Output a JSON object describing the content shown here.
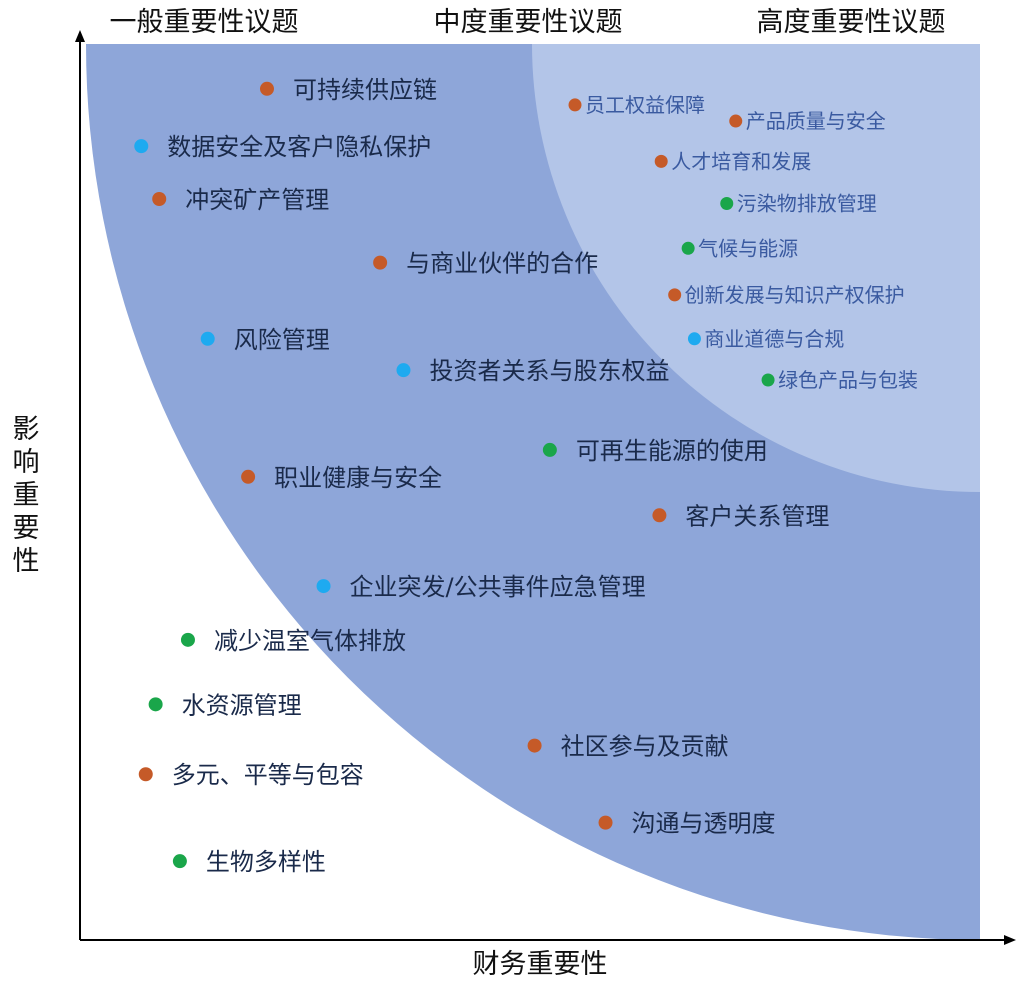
{
  "chart_data": {
    "type": "scatter",
    "title": "",
    "xlabel": "财务重要性",
    "ylabel": "影响重要性",
    "xlim": [
      0,
      100
    ],
    "ylim": [
      0,
      100
    ],
    "zones": [
      {
        "label": "一般重要性议题",
        "color": "#ffffff"
      },
      {
        "label": "中度重要性议题",
        "color": "#8ea6d9"
      },
      {
        "label": "高度重要性议题",
        "color": "#b3c5e8"
      }
    ],
    "category_colors": {
      "orange": "#c55a28",
      "green": "#1aa64a",
      "blue": "#1eaaf0"
    },
    "points": [
      {
        "label": "可持续供应链",
        "x": 20.6,
        "y": 95.0,
        "color": "orange"
      },
      {
        "label": "数据安全及客户隐私保护",
        "x": 6.6,
        "y": 88.6,
        "color": "blue"
      },
      {
        "label": "冲突矿产管理",
        "x": 8.6,
        "y": 82.7,
        "color": "orange"
      },
      {
        "label": "与商业伙伴的合作",
        "x": 33.2,
        "y": 75.6,
        "color": "orange"
      },
      {
        "label": "风险管理",
        "x": 14.0,
        "y": 67.1,
        "color": "blue"
      },
      {
        "label": "投资者关系与股东权益",
        "x": 35.8,
        "y": 63.6,
        "color": "blue"
      },
      {
        "label": "可再生能源的使用",
        "x": 52.1,
        "y": 54.7,
        "color": "green"
      },
      {
        "label": "职业健康与安全",
        "x": 18.5,
        "y": 51.7,
        "color": "orange"
      },
      {
        "label": "客户关系管理",
        "x": 64.3,
        "y": 47.4,
        "color": "orange"
      },
      {
        "label": "企业突发/公共事件应急管理",
        "x": 26.9,
        "y": 39.5,
        "color": "blue"
      },
      {
        "label": "减少温室气体排放",
        "x": 11.8,
        "y": 33.5,
        "color": "green"
      },
      {
        "label": "水资源管理",
        "x": 8.2,
        "y": 26.3,
        "color": "green"
      },
      {
        "label": "多元、平等与包容",
        "x": 7.1,
        "y": 18.5,
        "color": "orange"
      },
      {
        "label": "生物多样性",
        "x": 10.9,
        "y": 8.8,
        "color": "green"
      },
      {
        "label": "社区参与及贡献",
        "x": 50.4,
        "y": 21.7,
        "color": "orange"
      },
      {
        "label": "沟通与透明度",
        "x": 58.3,
        "y": 13.1,
        "color": "orange"
      },
      {
        "label": "员工权益保障",
        "x": 54.9,
        "y": 93.2,
        "color": "orange"
      },
      {
        "label": "产品质量与安全",
        "x": 72.8,
        "y": 91.4,
        "color": "orange"
      },
      {
        "label": "人才培育和发展",
        "x": 64.5,
        "y": 86.9,
        "color": "orange"
      },
      {
        "label": "污染物排放管理",
        "x": 71.8,
        "y": 82.2,
        "color": "green"
      },
      {
        "label": "气候与能源",
        "x": 67.5,
        "y": 77.2,
        "color": "green"
      },
      {
        "label": "创新发展与知识产权保护",
        "x": 66.0,
        "y": 72.0,
        "color": "orange"
      },
      {
        "label": "商业道德与合规",
        "x": 68.2,
        "y": 67.1,
        "color": "blue"
      },
      {
        "label": "绿色产品与包装",
        "x": 76.4,
        "y": 62.5,
        "color": "green"
      }
    ]
  }
}
